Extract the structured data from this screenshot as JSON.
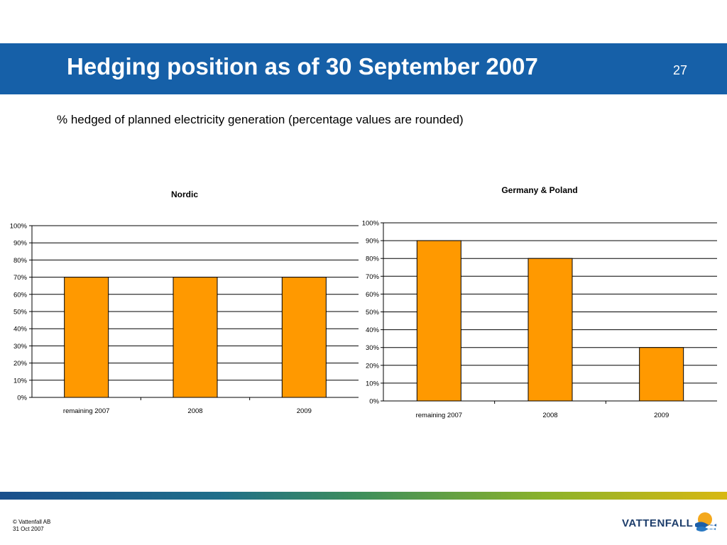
{
  "slide": {
    "title": "Hedging position as of 30 September 2007",
    "page_number": "27",
    "subtitle": "% hedged of planned electricity generation (percentage values are rounded)"
  },
  "footer": {
    "copyright": "© Vattenfall AB",
    "date": "31 Oct 2007"
  },
  "logo": {
    "text": "VATTENFALL"
  },
  "colors": {
    "header": "#1660a8",
    "bar": "#ff9900",
    "bar_stroke": "#000000"
  },
  "chart_data": [
    {
      "type": "bar",
      "title": "Nordic",
      "categories": [
        "remaining 2007",
        "2008",
        "2009"
      ],
      "values": [
        70,
        70,
        70
      ],
      "ylim": [
        0,
        100
      ],
      "yticks": [
        "0%",
        "10%",
        "20%",
        "30%",
        "40%",
        "50%",
        "60%",
        "70%",
        "80%",
        "90%",
        "100%"
      ],
      "grid": true
    },
    {
      "type": "bar",
      "title": "Germany & Poland",
      "categories": [
        "remaining 2007",
        "2008",
        "2009"
      ],
      "values": [
        90,
        80,
        30
      ],
      "ylim": [
        0,
        100
      ],
      "yticks": [
        "0%",
        "10%",
        "20%",
        "30%",
        "40%",
        "50%",
        "60%",
        "70%",
        "80%",
        "90%",
        "100%"
      ],
      "grid": true
    }
  ]
}
